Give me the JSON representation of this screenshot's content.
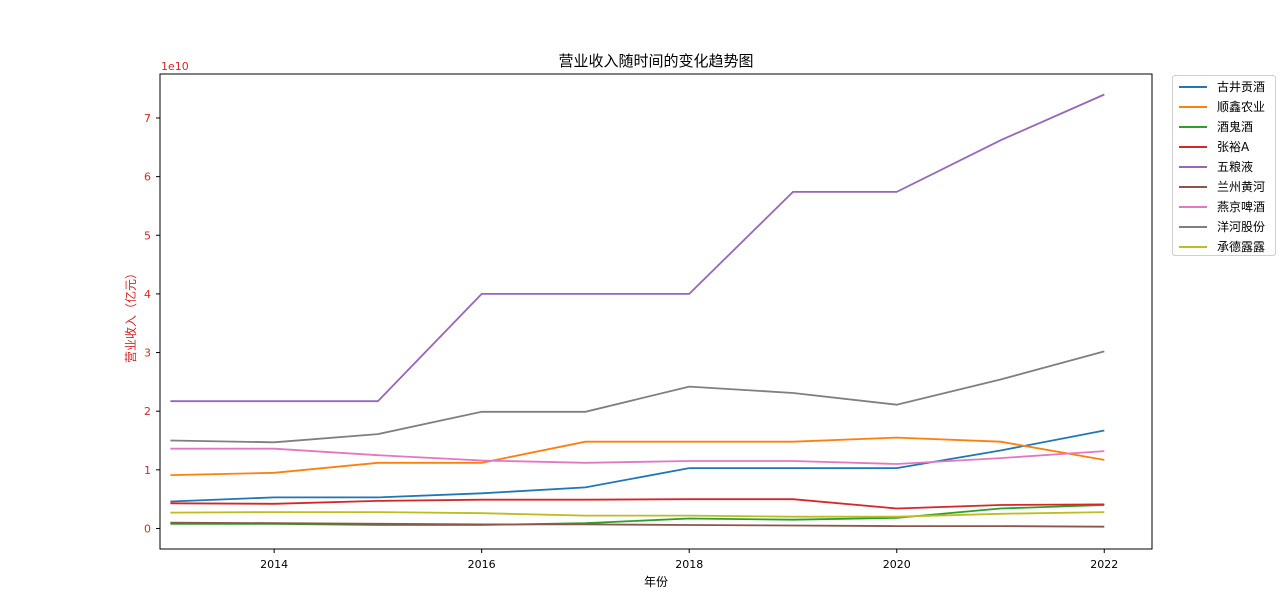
{
  "chart_data": {
    "type": "line",
    "title": "营业收入随时间的变化趋势图",
    "xlabel": "年份",
    "ylabel": "营业收入（亿元）",
    "y_offset_label": "1e10",
    "y_scale": 10000000000,
    "x": [
      2013,
      2014,
      2015,
      2016,
      2017,
      2018,
      2019,
      2020,
      2021,
      2022
    ],
    "xlim": [
      2012.9,
      2022.46
    ],
    "ylim": [
      -0.35,
      7.75
    ],
    "xticks": [
      2014,
      2016,
      2018,
      2020,
      2022
    ],
    "yticks": [
      0,
      1,
      2,
      3,
      4,
      5,
      6,
      7
    ],
    "legend_position": "outside-top-right",
    "grid": false,
    "series": [
      {
        "name": "古井贡酒",
        "color": "#1f77b4",
        "values": [
          0.46,
          0.53,
          0.53,
          0.6,
          0.7,
          1.03,
          1.03,
          1.03,
          1.33,
          1.67
        ]
      },
      {
        "name": "顺鑫农业",
        "color": "#ff7f0e",
        "values": [
          0.91,
          0.95,
          1.12,
          1.12,
          1.48,
          1.48,
          1.48,
          1.55,
          1.48,
          1.17
        ]
      },
      {
        "name": "酒鬼酒",
        "color": "#2ca02c",
        "values": [
          0.08,
          0.08,
          0.06,
          0.06,
          0.09,
          0.17,
          0.15,
          0.18,
          0.34,
          0.4
        ]
      },
      {
        "name": "张裕A",
        "color": "#d62728",
        "values": [
          0.43,
          0.42,
          0.47,
          0.49,
          0.49,
          0.5,
          0.5,
          0.34,
          0.4,
          0.41
        ]
      },
      {
        "name": "五粮液",
        "color": "#9467bd",
        "values": [
          2.17,
          2.17,
          2.17,
          4.0,
          4.0,
          4.0,
          5.74,
          5.74,
          6.62,
          7.4
        ]
      },
      {
        "name": "兰州黄河",
        "color": "#8c564b",
        "values": [
          0.1,
          0.09,
          0.08,
          0.07,
          0.07,
          0.06,
          0.05,
          0.04,
          0.04,
          0.03
        ]
      },
      {
        "name": "燕京啤酒",
        "color": "#e377c2",
        "values": [
          1.36,
          1.36,
          1.25,
          1.16,
          1.12,
          1.15,
          1.15,
          1.1,
          1.2,
          1.32
        ]
      },
      {
        "name": "洋河股份",
        "color": "#7f7f7f",
        "values": [
          1.5,
          1.47,
          1.61,
          1.99,
          1.99,
          2.42,
          2.31,
          2.11,
          2.54,
          3.02
        ]
      },
      {
        "name": "承德露露",
        "color": "#bcbd22",
        "values": [
          0.27,
          0.28,
          0.28,
          0.26,
          0.22,
          0.22,
          0.2,
          0.2,
          0.25,
          0.28
        ]
      }
    ]
  }
}
